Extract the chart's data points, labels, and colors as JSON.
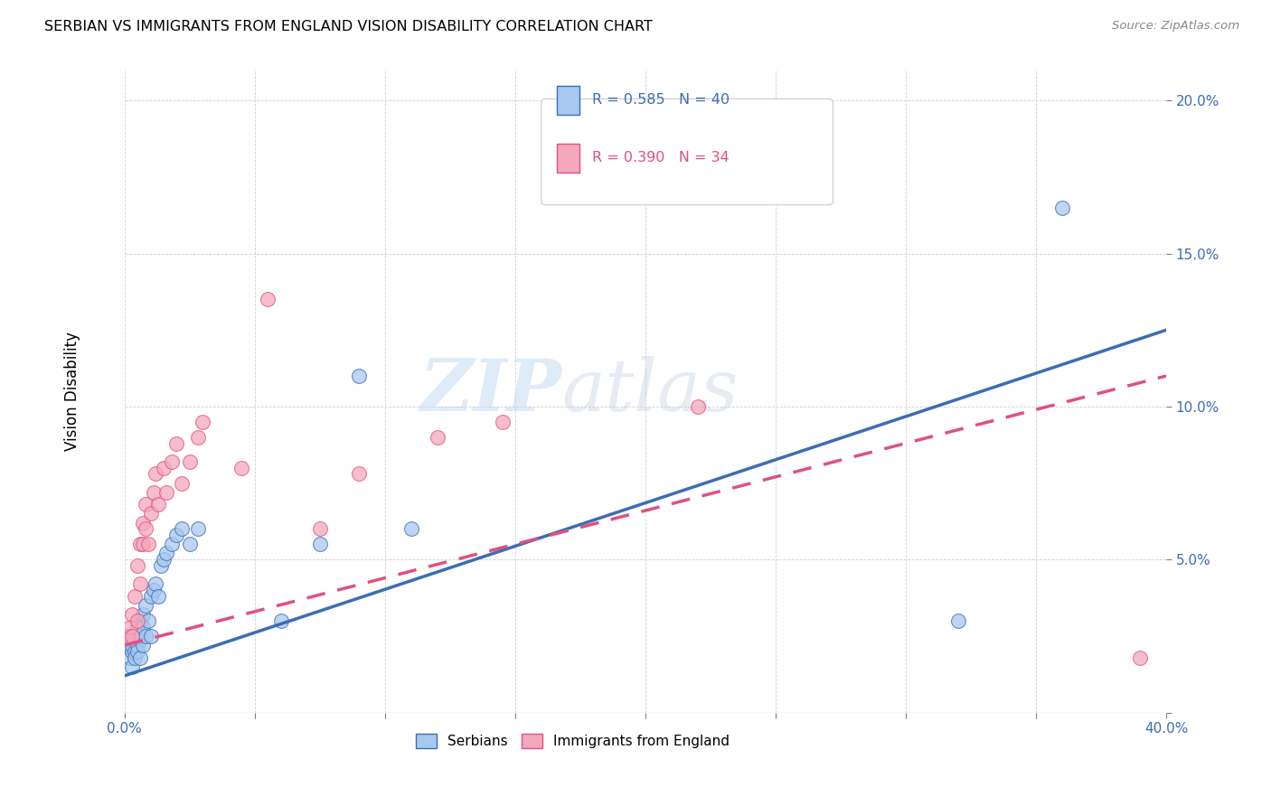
{
  "title": "SERBIAN VS IMMIGRANTS FROM ENGLAND VISION DISABILITY CORRELATION CHART",
  "source": "Source: ZipAtlas.com",
  "ylabel": "Vision Disability",
  "xlim": [
    0.0,
    0.4
  ],
  "ylim": [
    0.0,
    0.21
  ],
  "xticks": [
    0.0,
    0.05,
    0.1,
    0.15,
    0.2,
    0.25,
    0.3,
    0.35,
    0.4
  ],
  "yticks": [
    0.0,
    0.05,
    0.1,
    0.15,
    0.2
  ],
  "blue_R": 0.585,
  "blue_N": 40,
  "pink_R": 0.39,
  "pink_N": 34,
  "blue_color": "#A8C8F0",
  "pink_color": "#F4A8BC",
  "blue_line_color": "#3B6DB5",
  "pink_line_color": "#E05080",
  "watermark_zip": "ZIP",
  "watermark_atlas": "atlas",
  "legend_label_blue": "Serbians",
  "legend_label_pink": "Immigrants from England",
  "blue_x": [
    0.001,
    0.002,
    0.002,
    0.003,
    0.003,
    0.003,
    0.004,
    0.004,
    0.004,
    0.005,
    0.005,
    0.005,
    0.006,
    0.006,
    0.006,
    0.007,
    0.007,
    0.007,
    0.008,
    0.008,
    0.009,
    0.01,
    0.01,
    0.011,
    0.012,
    0.013,
    0.014,
    0.015,
    0.016,
    0.018,
    0.02,
    0.022,
    0.025,
    0.028,
    0.06,
    0.075,
    0.09,
    0.11,
    0.32,
    0.36
  ],
  "blue_y": [
    0.022,
    0.025,
    0.018,
    0.02,
    0.015,
    0.022,
    0.02,
    0.025,
    0.018,
    0.028,
    0.022,
    0.02,
    0.03,
    0.025,
    0.018,
    0.032,
    0.028,
    0.022,
    0.035,
    0.025,
    0.03,
    0.038,
    0.025,
    0.04,
    0.042,
    0.038,
    0.048,
    0.05,
    0.052,
    0.055,
    0.058,
    0.06,
    0.055,
    0.06,
    0.03,
    0.055,
    0.11,
    0.06,
    0.03,
    0.165
  ],
  "pink_x": [
    0.001,
    0.002,
    0.003,
    0.003,
    0.004,
    0.005,
    0.005,
    0.006,
    0.006,
    0.007,
    0.007,
    0.008,
    0.008,
    0.009,
    0.01,
    0.011,
    0.012,
    0.013,
    0.015,
    0.016,
    0.018,
    0.02,
    0.022,
    0.025,
    0.028,
    0.03,
    0.045,
    0.055,
    0.075,
    0.09,
    0.12,
    0.145,
    0.22,
    0.39
  ],
  "pink_y": [
    0.025,
    0.028,
    0.032,
    0.025,
    0.038,
    0.03,
    0.048,
    0.042,
    0.055,
    0.055,
    0.062,
    0.06,
    0.068,
    0.055,
    0.065,
    0.072,
    0.078,
    0.068,
    0.08,
    0.072,
    0.082,
    0.088,
    0.075,
    0.082,
    0.09,
    0.095,
    0.08,
    0.135,
    0.06,
    0.078,
    0.09,
    0.095,
    0.1,
    0.018
  ],
  "blue_line_x0": 0.0,
  "blue_line_y0": 0.012,
  "blue_line_x1": 0.4,
  "blue_line_y1": 0.125,
  "pink_line_x0": 0.0,
  "pink_line_y0": 0.022,
  "pink_line_x1": 0.4,
  "pink_line_y1": 0.11
}
